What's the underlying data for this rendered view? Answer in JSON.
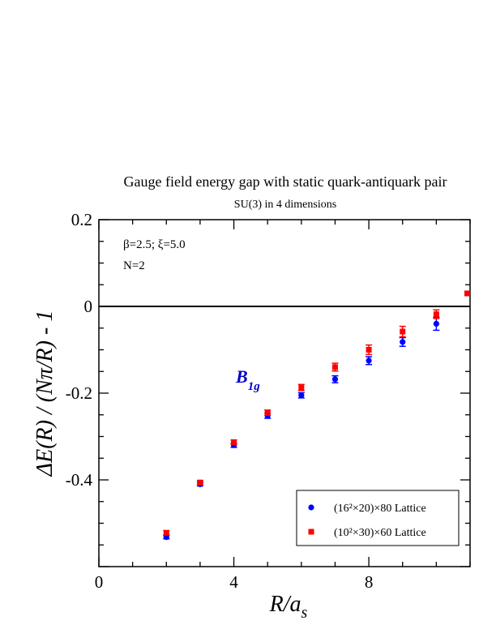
{
  "chart_data": {
    "type": "scatter",
    "title": "Gauge field energy gap with static quark-antiquark pair",
    "subtitle": "SU(3) in 4 dimensions",
    "xlabel": {
      "main": "R/a",
      "sub": "s"
    },
    "ylabel": "ΔE(R) / (Nπ/R) - 1",
    "xlim": [
      0,
      11
    ],
    "ylim": [
      -0.6,
      0.2
    ],
    "x_ticks": [
      0,
      4,
      8
    ],
    "y_ticks": [
      0.2,
      0,
      -0.2,
      -0.4
    ],
    "x_tick_labels": [
      "0",
      "4",
      "8"
    ],
    "y_tick_labels": [
      "0.2",
      "0",
      "-0.2",
      "-0.4"
    ],
    "grid": false,
    "legend_position": "bottom-right",
    "annotations": {
      "params": "β=2.5;  ξ=5.0",
      "n_value": "N=2",
      "state_main": "B",
      "state_sub": "1g"
    },
    "series": [
      {
        "name": "(16²×20)×80 Lattice",
        "color": "#0000ff",
        "marker": "circle",
        "points": [
          {
            "x": 2,
            "y": -0.532,
            "err": 0.004
          },
          {
            "x": 3,
            "y": -0.41,
            "err": 0.004
          },
          {
            "x": 4,
            "y": -0.32,
            "err": 0.005
          },
          {
            "x": 5,
            "y": -0.252,
            "err": 0.006
          },
          {
            "x": 6,
            "y": -0.205,
            "err": 0.006
          },
          {
            "x": 7,
            "y": -0.168,
            "err": 0.008
          },
          {
            "x": 8,
            "y": -0.125,
            "err": 0.009
          },
          {
            "x": 9,
            "y": -0.082,
            "err": 0.01
          },
          {
            "x": 10,
            "y": -0.04,
            "err": 0.015
          }
        ]
      },
      {
        "name": "(10²×30)×60 Lattice",
        "color": "#ff0000",
        "marker": "square",
        "points": [
          {
            "x": 2,
            "y": -0.522,
            "err": 0.005
          },
          {
            "x": 3,
            "y": -0.406,
            "err": 0.004
          },
          {
            "x": 4,
            "y": -0.313,
            "err": 0.005
          },
          {
            "x": 5,
            "y": -0.245,
            "err": 0.006
          },
          {
            "x": 6,
            "y": -0.187,
            "err": 0.007
          },
          {
            "x": 7,
            "y": -0.14,
            "err": 0.009
          },
          {
            "x": 8,
            "y": -0.1,
            "err": 0.011
          },
          {
            "x": 9,
            "y": -0.058,
            "err": 0.012
          },
          {
            "x": 10,
            "y": -0.018,
            "err": 0.01
          },
          {
            "x": 11,
            "y": 0.03,
            "err": 0.0
          }
        ]
      }
    ]
  }
}
